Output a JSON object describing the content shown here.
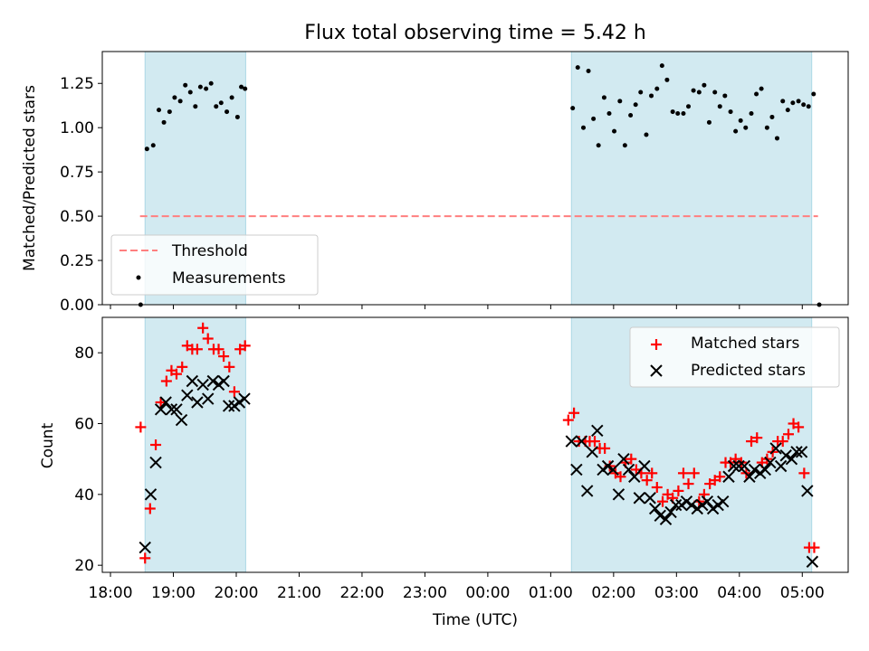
{
  "chart_data": [
    {
      "type": "scatter",
      "title": "Flux total observing time = 5.42 h",
      "xlabel": "",
      "ylabel": "Matched/Predicted stars",
      "x_unit": "hours since 18:00 UTC",
      "xlim": [
        -0.13,
        11.73
      ],
      "ylim": [
        0.0,
        1.43
      ],
      "yticks": [
        0.0,
        0.25,
        0.5,
        0.75,
        1.0,
        1.25
      ],
      "ytick_labels": [
        "0.00",
        "0.25",
        "0.50",
        "0.75",
        "1.00",
        "1.25"
      ],
      "shaded_intervals": [
        [
          0.55,
          2.15
        ],
        [
          7.33,
          11.15
        ]
      ],
      "shade_color": "#add8e6",
      "legend": {
        "location": "lower-left",
        "entries": [
          "Threshold",
          "Measurements"
        ]
      },
      "threshold": {
        "name": "Threshold",
        "x": [
          0.47,
          11.25
        ],
        "y": 0.5,
        "color": "#ff7f7f",
        "style": "dashed"
      },
      "measurements": {
        "name": "Measurements",
        "color": "#000000",
        "points": [
          [
            0.48,
            0.0
          ],
          [
            0.58,
            0.88
          ],
          [
            0.68,
            0.9
          ],
          [
            0.77,
            1.1
          ],
          [
            0.85,
            1.03
          ],
          [
            0.94,
            1.09
          ],
          [
            1.02,
            1.17
          ],
          [
            1.11,
            1.15
          ],
          [
            1.19,
            1.24
          ],
          [
            1.27,
            1.2
          ],
          [
            1.35,
            1.12
          ],
          [
            1.43,
            1.23
          ],
          [
            1.52,
            1.22
          ],
          [
            1.6,
            1.25
          ],
          [
            1.68,
            1.12
          ],
          [
            1.76,
            1.14
          ],
          [
            1.85,
            1.09
          ],
          [
            1.93,
            1.17
          ],
          [
            2.02,
            1.06
          ],
          [
            2.08,
            1.23
          ],
          [
            2.14,
            1.22
          ],
          [
            7.35,
            1.11
          ],
          [
            7.43,
            1.34
          ],
          [
            7.52,
            1.0
          ],
          [
            7.6,
            1.32
          ],
          [
            7.68,
            1.05
          ],
          [
            7.76,
            0.9
          ],
          [
            7.85,
            1.17
          ],
          [
            7.93,
            1.08
          ],
          [
            8.01,
            0.98
          ],
          [
            8.1,
            1.15
          ],
          [
            8.18,
            0.9
          ],
          [
            8.27,
            1.07
          ],
          [
            8.35,
            1.13
          ],
          [
            8.43,
            1.2
          ],
          [
            8.52,
            0.96
          ],
          [
            8.6,
            1.18
          ],
          [
            8.69,
            1.22
          ],
          [
            8.77,
            1.35
          ],
          [
            8.85,
            1.27
          ],
          [
            8.94,
            1.09
          ],
          [
            9.02,
            1.08
          ],
          [
            9.11,
            1.08
          ],
          [
            9.19,
            1.12
          ],
          [
            9.27,
            1.21
          ],
          [
            9.36,
            1.2
          ],
          [
            9.44,
            1.24
          ],
          [
            9.52,
            1.03
          ],
          [
            9.61,
            1.2
          ],
          [
            9.69,
            1.12
          ],
          [
            9.77,
            1.18
          ],
          [
            9.86,
            1.09
          ],
          [
            9.94,
            0.98
          ],
          [
            10.02,
            1.04
          ],
          [
            10.1,
            1.0
          ],
          [
            10.19,
            1.08
          ],
          [
            10.27,
            1.19
          ],
          [
            10.35,
            1.22
          ],
          [
            10.44,
            1.0
          ],
          [
            10.52,
            1.06
          ],
          [
            10.6,
            0.94
          ],
          [
            10.69,
            1.15
          ],
          [
            10.77,
            1.1
          ],
          [
            10.85,
            1.14
          ],
          [
            10.94,
            1.15
          ],
          [
            11.02,
            1.13
          ],
          [
            11.1,
            1.12
          ],
          [
            11.18,
            1.19
          ],
          [
            11.27,
            0.0
          ]
        ]
      }
    },
    {
      "type": "scatter",
      "title": "",
      "xlabel": "Time (UTC)",
      "ylabel": "Count",
      "x_unit": "hours since 18:00 UTC",
      "xlim": [
        -0.13,
        11.73
      ],
      "ylim": [
        18.0,
        90.0
      ],
      "yticks": [
        20,
        40,
        60,
        80
      ],
      "ytick_labels": [
        "20",
        "40",
        "60",
        "80"
      ],
      "xticks": [
        0,
        1,
        2,
        3,
        4,
        5,
        6,
        7,
        8,
        9,
        10,
        11
      ],
      "xtick_labels": [
        "18:00",
        "19:00",
        "20:00",
        "21:00",
        "22:00",
        "23:00",
        "00:00",
        "01:00",
        "02:00",
        "03:00",
        "04:00",
        "05:00"
      ],
      "shaded_intervals": [
        [
          0.55,
          2.15
        ],
        [
          7.33,
          11.15
        ]
      ],
      "shade_color": "#add8e6",
      "legend": {
        "location": "top-right",
        "entries": [
          "Matched stars",
          "Predicted stars"
        ]
      },
      "series": [
        {
          "name": "Matched stars",
          "marker": "+",
          "color": "#ff0000",
          "points": [
            [
              0.48,
              59
            ],
            [
              0.55,
              22
            ],
            [
              0.63,
              36
            ],
            [
              0.72,
              54
            ],
            [
              0.8,
              66
            ],
            [
              0.89,
              72
            ],
            [
              0.97,
              75
            ],
            [
              1.05,
              74
            ],
            [
              1.14,
              76
            ],
            [
              1.22,
              82
            ],
            [
              1.3,
              81
            ],
            [
              1.38,
              81
            ],
            [
              1.47,
              87
            ],
            [
              1.55,
              84
            ],
            [
              1.64,
              81
            ],
            [
              1.72,
              81
            ],
            [
              1.8,
              79
            ],
            [
              1.89,
              76
            ],
            [
              1.97,
              69
            ],
            [
              2.06,
              81
            ],
            [
              2.14,
              82
            ],
            [
              7.28,
              61
            ],
            [
              7.37,
              63
            ],
            [
              7.45,
              55
            ],
            [
              7.55,
              55
            ],
            [
              7.62,
              55
            ],
            [
              7.7,
              55
            ],
            [
              7.78,
              53
            ],
            [
              7.86,
              53
            ],
            [
              7.94,
              48
            ],
            [
              8.03,
              46
            ],
            [
              8.11,
              45
            ],
            [
              8.19,
              49
            ],
            [
              8.28,
              50
            ],
            [
              8.36,
              47
            ],
            [
              8.44,
              46
            ],
            [
              8.53,
              44
            ],
            [
              8.61,
              46
            ],
            [
              8.69,
              42
            ],
            [
              8.78,
              38
            ],
            [
              8.86,
              40
            ],
            [
              8.94,
              39
            ],
            [
              9.03,
              41
            ],
            [
              9.11,
              46
            ],
            [
              9.19,
              43
            ],
            [
              9.28,
              46
            ],
            [
              9.36,
              38
            ],
            [
              9.44,
              40
            ],
            [
              9.53,
              43
            ],
            [
              9.61,
              44
            ],
            [
              9.69,
              45
            ],
            [
              9.78,
              49
            ],
            [
              9.86,
              49
            ],
            [
              9.94,
              50
            ],
            [
              10.03,
              49
            ],
            [
              10.11,
              46
            ],
            [
              10.19,
              55
            ],
            [
              10.28,
              56
            ],
            [
              10.36,
              49
            ],
            [
              10.44,
              50
            ],
            [
              10.53,
              52
            ],
            [
              10.61,
              55
            ],
            [
              10.69,
              55
            ],
            [
              10.78,
              57
            ],
            [
              10.86,
              60
            ],
            [
              10.94,
              59
            ],
            [
              11.03,
              46
            ],
            [
              11.11,
              25
            ],
            [
              11.19,
              25
            ]
          ]
        },
        {
          "name": "Predicted stars",
          "marker": "x",
          "color": "#000000",
          "points": [
            [
              0.55,
              25
            ],
            [
              0.64,
              40
            ],
            [
              0.72,
              49
            ],
            [
              0.8,
              64
            ],
            [
              0.88,
              66
            ],
            [
              0.97,
              64
            ],
            [
              1.05,
              64
            ],
            [
              1.13,
              61
            ],
            [
              1.22,
              68
            ],
            [
              1.3,
              72
            ],
            [
              1.38,
              66
            ],
            [
              1.47,
              71
            ],
            [
              1.55,
              67
            ],
            [
              1.63,
              72
            ],
            [
              1.72,
              71
            ],
            [
              1.8,
              72
            ],
            [
              1.88,
              65
            ],
            [
              1.97,
              65
            ],
            [
              2.05,
              66
            ],
            [
              2.13,
              67
            ],
            [
              7.33,
              55
            ],
            [
              7.41,
              47
            ],
            [
              7.49,
              55
            ],
            [
              7.58,
              41
            ],
            [
              7.66,
              52
            ],
            [
              7.74,
              58
            ],
            [
              7.83,
              47
            ],
            [
              7.91,
              48
            ],
            [
              7.99,
              47
            ],
            [
              8.08,
              40
            ],
            [
              8.16,
              50
            ],
            [
              8.24,
              47
            ],
            [
              8.33,
              45
            ],
            [
              8.41,
              39
            ],
            [
              8.49,
              48
            ],
            [
              8.58,
              39
            ],
            [
              8.66,
              36
            ],
            [
              8.74,
              34
            ],
            [
              8.83,
              33
            ],
            [
              8.91,
              35
            ],
            [
              8.99,
              37
            ],
            [
              9.08,
              37
            ],
            [
              9.16,
              38
            ],
            [
              9.24,
              37
            ],
            [
              9.33,
              36
            ],
            [
              9.41,
              37
            ],
            [
              9.49,
              38
            ],
            [
              9.58,
              36
            ],
            [
              9.66,
              37
            ],
            [
              9.74,
              38
            ],
            [
              9.83,
              45
            ],
            [
              9.91,
              48
            ],
            [
              9.99,
              48
            ],
            [
              10.08,
              48
            ],
            [
              10.16,
              45
            ],
            [
              10.24,
              47
            ],
            [
              10.33,
              46
            ],
            [
              10.41,
              47
            ],
            [
              10.49,
              49
            ],
            [
              10.58,
              53
            ],
            [
              10.66,
              48
            ],
            [
              10.74,
              51
            ],
            [
              10.83,
              50
            ],
            [
              10.91,
              52
            ],
            [
              10.99,
              52
            ],
            [
              11.08,
              41
            ],
            [
              11.16,
              21
            ]
          ]
        }
      ]
    }
  ]
}
